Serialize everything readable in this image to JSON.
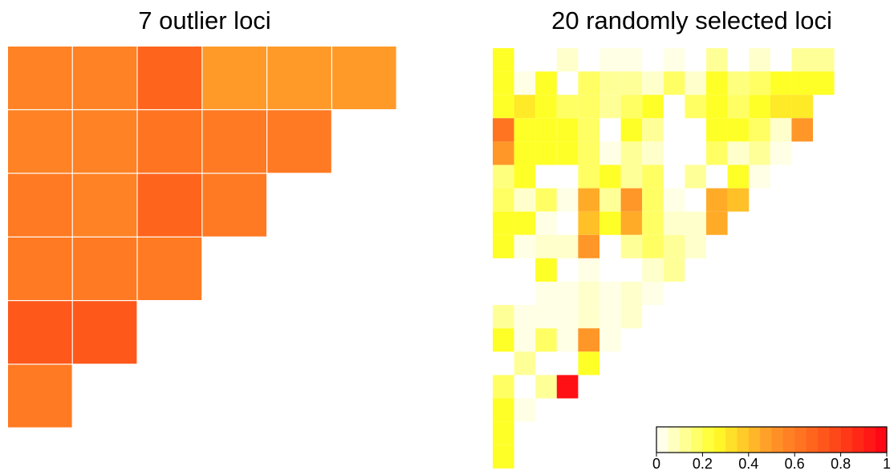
{
  "chart_data": [
    {
      "type": "heatmap",
      "title": "7 outlier loci",
      "layout": "lower-triangle",
      "rows": [
        [
          0.57,
          0.57,
          0.68,
          0.49,
          0.49,
          0.49
        ],
        [
          0.57,
          0.57,
          0.62,
          0.6,
          0.6
        ],
        [
          0.6,
          0.57,
          0.68,
          0.6
        ],
        [
          0.6,
          0.6,
          0.6
        ],
        [
          0.72,
          0.72
        ],
        [
          0.6
        ]
      ]
    },
    {
      "type": "heatmap",
      "title": "20 randomly selected loci",
      "layout": "lower-triangle",
      "rows": [
        [
          0.25,
          null,
          null,
          0.06,
          null,
          0.03,
          0.03,
          null,
          0.03,
          null,
          0.12,
          null,
          0.06,
          null,
          0.12,
          0.12
        ],
        [
          0.25,
          0.03,
          0.25,
          null,
          0.18,
          0.12,
          0.12,
          0.06,
          0.18,
          0.06,
          0.25,
          0.15,
          0.18,
          0.25,
          0.25,
          0.25
        ],
        [
          0.25,
          0.3,
          0.25,
          0.18,
          0.18,
          0.12,
          0.18,
          0.25,
          null,
          0.18,
          0.25,
          0.18,
          0.25,
          0.3,
          0.3
        ],
        [
          0.62,
          0.25,
          0.25,
          0.25,
          0.18,
          null,
          0.25,
          0.12,
          null,
          null,
          0.25,
          0.25,
          0.18,
          0.06,
          0.5
        ],
        [
          0.5,
          0.25,
          0.25,
          0.25,
          0.18,
          0.03,
          0.12,
          0.06,
          null,
          null,
          0.18,
          0.06,
          0.12,
          0.03
        ],
        [
          0.15,
          0.25,
          null,
          null,
          0.18,
          0.25,
          0.12,
          0.18,
          null,
          0.12,
          null,
          0.25,
          0.03
        ],
        [
          0.18,
          0.06,
          0.18,
          0.03,
          0.45,
          0.12,
          0.5,
          0.18,
          0.03,
          null,
          0.45,
          0.4
        ],
        [
          0.25,
          0.25,
          0.03,
          null,
          0.4,
          0.25,
          0.45,
          0.18,
          0.06,
          0.06,
          0.45
        ],
        [
          0.25,
          0.03,
          0.06,
          0.06,
          0.5,
          null,
          0.12,
          0.18,
          0.12,
          0.06
        ],
        [
          null,
          null,
          0.25,
          null,
          0.03,
          null,
          null,
          0.06,
          0.12
        ],
        [
          null,
          null,
          0.03,
          0.03,
          0.06,
          0.03,
          0.06,
          0.03
        ],
        [
          0.12,
          0.03,
          0.03,
          0.03,
          0.06,
          0.03,
          0.06
        ],
        [
          0.25,
          0.03,
          0.18,
          0.03,
          0.5,
          0.03
        ],
        [
          null,
          0.12,
          null,
          null,
          0.25
        ],
        [
          0.18,
          null,
          0.12,
          0.95
        ],
        [
          0.25,
          0.03,
          null
        ],
        [
          0.25,
          null
        ],
        [
          0.25
        ]
      ]
    }
  ],
  "colorbar": {
    "ticks": [
      "0",
      "0.2",
      "0.4",
      "0.6",
      "0.8",
      "1"
    ],
    "range": [
      0,
      1
    ]
  }
}
